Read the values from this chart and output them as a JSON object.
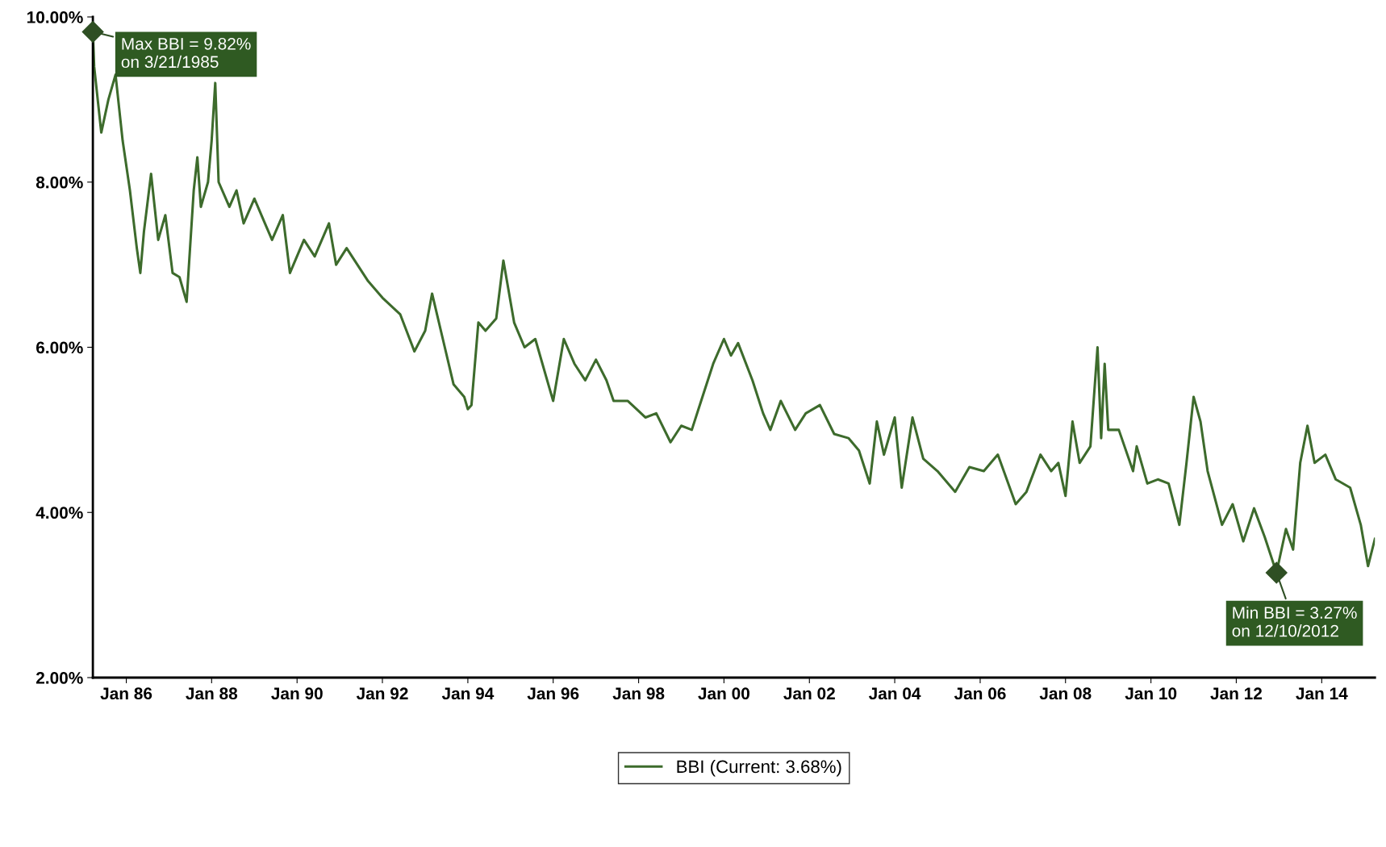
{
  "chart_data": {
    "type": "line",
    "x": [
      "1985-03-21",
      "1985-04",
      "1985-06",
      "1985-08",
      "1985-10",
      "1985-12",
      "1986-02",
      "1986-04",
      "1986-05",
      "1986-06",
      "1986-08",
      "1986-10",
      "1986-12",
      "1987-02",
      "1987-04",
      "1987-06",
      "1987-08",
      "1987-09",
      "1987-10",
      "1987-12",
      "1988-01",
      "1988-02",
      "1988-03",
      "1988-06",
      "1988-08",
      "1988-10",
      "1989-01",
      "1989-04",
      "1989-06",
      "1989-09",
      "1989-11",
      "1990-03",
      "1990-06",
      "1990-10",
      "1990-12",
      "1991-03",
      "1991-06",
      "1991-09",
      "1992-01",
      "1992-06",
      "1992-10",
      "1993-01",
      "1993-03",
      "1993-06",
      "1993-09",
      "1993-12",
      "1994-01",
      "1994-02",
      "1994-04",
      "1994-06",
      "1994-09",
      "1994-11",
      "1995-02",
      "1995-05",
      "1995-08",
      "1995-12",
      "1996-01",
      "1996-04",
      "1996-07",
      "1996-10",
      "1997-01",
      "1997-04",
      "1997-06",
      "1997-10",
      "1998-03",
      "1998-06",
      "1998-10",
      "1999-01",
      "1999-04",
      "1999-07",
      "1999-10",
      "2000-01",
      "2000-03",
      "2000-05",
      "2000-09",
      "2000-12",
      "2001-02",
      "2001-05",
      "2001-09",
      "2001-12",
      "2002-04",
      "2002-08",
      "2002-12",
      "2003-03",
      "2003-06",
      "2003-08",
      "2003-10",
      "2004-01",
      "2004-03",
      "2004-06",
      "2004-09",
      "2005-01",
      "2005-06",
      "2005-10",
      "2006-02",
      "2006-06",
      "2006-11",
      "2007-02",
      "2007-06",
      "2007-09",
      "2007-11",
      "2008-01",
      "2008-03",
      "2008-05",
      "2008-08",
      "2008-10",
      "2008-11",
      "2008-12",
      "2009-01",
      "2009-04",
      "2009-08",
      "2009-09",
      "2009-12",
      "2010-03",
      "2010-06",
      "2010-09",
      "2010-11",
      "2011-01",
      "2011-03",
      "2011-05",
      "2011-09",
      "2011-12",
      "2012-03",
      "2012-06",
      "2012-09",
      "2012-12-10",
      "2013-03",
      "2013-05",
      "2013-07",
      "2013-09",
      "2013-11",
      "2014-02",
      "2014-05",
      "2014-09",
      "2014-12",
      "2015-02",
      "2015-04"
    ],
    "series": [
      {
        "name": "BBI (Current: 3.68%)",
        "color": "#3d6b2c",
        "values": [
          9.82,
          9.4,
          8.6,
          9.0,
          9.3,
          8.5,
          7.9,
          7.2,
          6.9,
          7.4,
          8.1,
          7.3,
          7.6,
          6.9,
          6.85,
          6.55,
          7.9,
          8.3,
          7.7,
          8.0,
          8.5,
          9.2,
          8.0,
          7.7,
          7.9,
          7.5,
          7.8,
          7.5,
          7.3,
          7.6,
          6.9,
          7.3,
          7.1,
          7.5,
          7.0,
          7.2,
          7.0,
          6.8,
          6.6,
          6.4,
          5.95,
          6.2,
          6.65,
          6.1,
          5.55,
          5.4,
          5.25,
          5.3,
          6.3,
          6.2,
          6.35,
          7.05,
          6.3,
          6.0,
          6.1,
          5.5,
          5.35,
          6.1,
          5.8,
          5.6,
          5.85,
          5.6,
          5.35,
          5.35,
          5.15,
          5.2,
          4.85,
          5.05,
          5.0,
          5.4,
          5.8,
          6.1,
          5.9,
          6.05,
          5.6,
          5.2,
          5.0,
          5.35,
          5.0,
          5.2,
          5.3,
          4.95,
          4.9,
          4.75,
          4.35,
          5.1,
          4.7,
          5.15,
          4.3,
          5.15,
          4.65,
          4.5,
          4.25,
          4.55,
          4.5,
          4.7,
          4.1,
          4.25,
          4.7,
          4.5,
          4.6,
          4.2,
          5.1,
          4.6,
          4.8,
          6.0,
          4.9,
          5.8,
          5.0,
          5.0,
          4.5,
          4.8,
          4.35,
          4.4,
          4.35,
          3.85,
          4.6,
          5.4,
          5.1,
          4.5,
          3.85,
          4.1,
          3.65,
          4.05,
          3.7,
          3.27,
          3.8,
          3.55,
          4.6,
          5.05,
          4.6,
          4.7,
          4.4,
          4.3,
          3.85,
          3.35,
          3.68
        ]
      }
    ],
    "xlim": [
      "1985-03-21",
      "2015-04"
    ],
    "xticks": [
      {
        "value": "1986-01",
        "label": "Jan 86"
      },
      {
        "value": "1988-01",
        "label": "Jan 88"
      },
      {
        "value": "1990-01",
        "label": "Jan 90"
      },
      {
        "value": "1992-01",
        "label": "Jan 92"
      },
      {
        "value": "1994-01",
        "label": "Jan 94"
      },
      {
        "value": "1996-01",
        "label": "Jan 96"
      },
      {
        "value": "1998-01",
        "label": "Jan 98"
      },
      {
        "value": "2000-01",
        "label": "Jan 00"
      },
      {
        "value": "2002-01",
        "label": "Jan 02"
      },
      {
        "value": "2004-01",
        "label": "Jan 04"
      },
      {
        "value": "2006-01",
        "label": "Jan 06"
      },
      {
        "value": "2008-01",
        "label": "Jan 08"
      },
      {
        "value": "2010-01",
        "label": "Jan 10"
      },
      {
        "value": "2012-01",
        "label": "Jan 12"
      },
      {
        "value": "2014-01",
        "label": "Jan 14"
      }
    ],
    "ylim": [
      2,
      10
    ],
    "yticks": [
      {
        "value": 2,
        "label": "2.00%"
      },
      {
        "value": 4,
        "label": "4.00%"
      },
      {
        "value": 6,
        "label": "6.00%"
      },
      {
        "value": 8,
        "label": "8.00%"
      },
      {
        "value": 10,
        "label": "10.00%"
      }
    ],
    "annotations": [
      {
        "text": "Max BBI = 9.82%\non 3/21/1985",
        "x": "1985-03-21",
        "y": 9.82
      },
      {
        "text": "Min BBI = 3.27%\non 12/10/2012",
        "x": "2012-12-10",
        "y": 3.27
      }
    ],
    "grid": false,
    "legend": "bottom",
    "marker": "none",
    "line_style": "solid"
  }
}
